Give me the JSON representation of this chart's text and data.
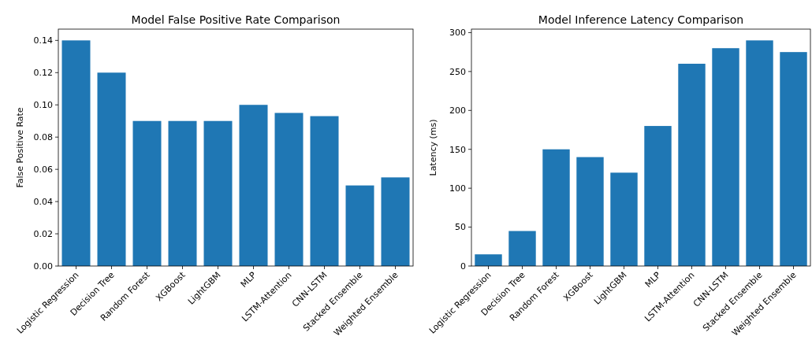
{
  "chart_data": [
    {
      "type": "bar",
      "title": "Model False Positive Rate Comparison",
      "ylabel": "False Positive Rate",
      "categories": [
        "Logistic Regression",
        "Decision Tree",
        "Random Forest",
        "XGBoost",
        "LightGBM",
        "MLP",
        "LSTM-Attention",
        "CNN-LSTM",
        "Stacked Ensemble",
        "Weighted Ensemble"
      ],
      "values": [
        0.14,
        0.12,
        0.09,
        0.09,
        0.09,
        0.1,
        0.095,
        0.093,
        0.05,
        0.055
      ],
      "color": "#1f77b4",
      "ylim": [
        0,
        0.147
      ],
      "yticks": [
        {
          "value": 0,
          "label": "0.00"
        },
        {
          "value": 0.02,
          "label": "0.02"
        },
        {
          "value": 0.04,
          "label": "0.04"
        },
        {
          "value": 0.06,
          "label": "0.06"
        },
        {
          "value": 0.08,
          "label": "0.08"
        },
        {
          "value": 0.1,
          "label": "0.10"
        },
        {
          "value": 0.12,
          "label": "0.12"
        },
        {
          "value": 0.14,
          "label": "0.14"
        }
      ]
    },
    {
      "type": "bar",
      "title": "Model Inference Latency Comparison",
      "ylabel": "Latency (ms)",
      "categories": [
        "Logistic Regression",
        "Decision Tree",
        "Random Forest",
        "XGBoost",
        "LightGBM",
        "MLP",
        "LSTM-Attention",
        "CNN-LSTM",
        "Stacked Ensemble",
        "Weighted Ensemble"
      ],
      "values": [
        15,
        45,
        150,
        140,
        120,
        180,
        260,
        280,
        290,
        275
      ],
      "color": "#1f77b4",
      "ylim": [
        0,
        304.5
      ],
      "yticks": [
        0,
        50,
        100,
        150,
        200,
        250,
        300
      ]
    }
  ]
}
